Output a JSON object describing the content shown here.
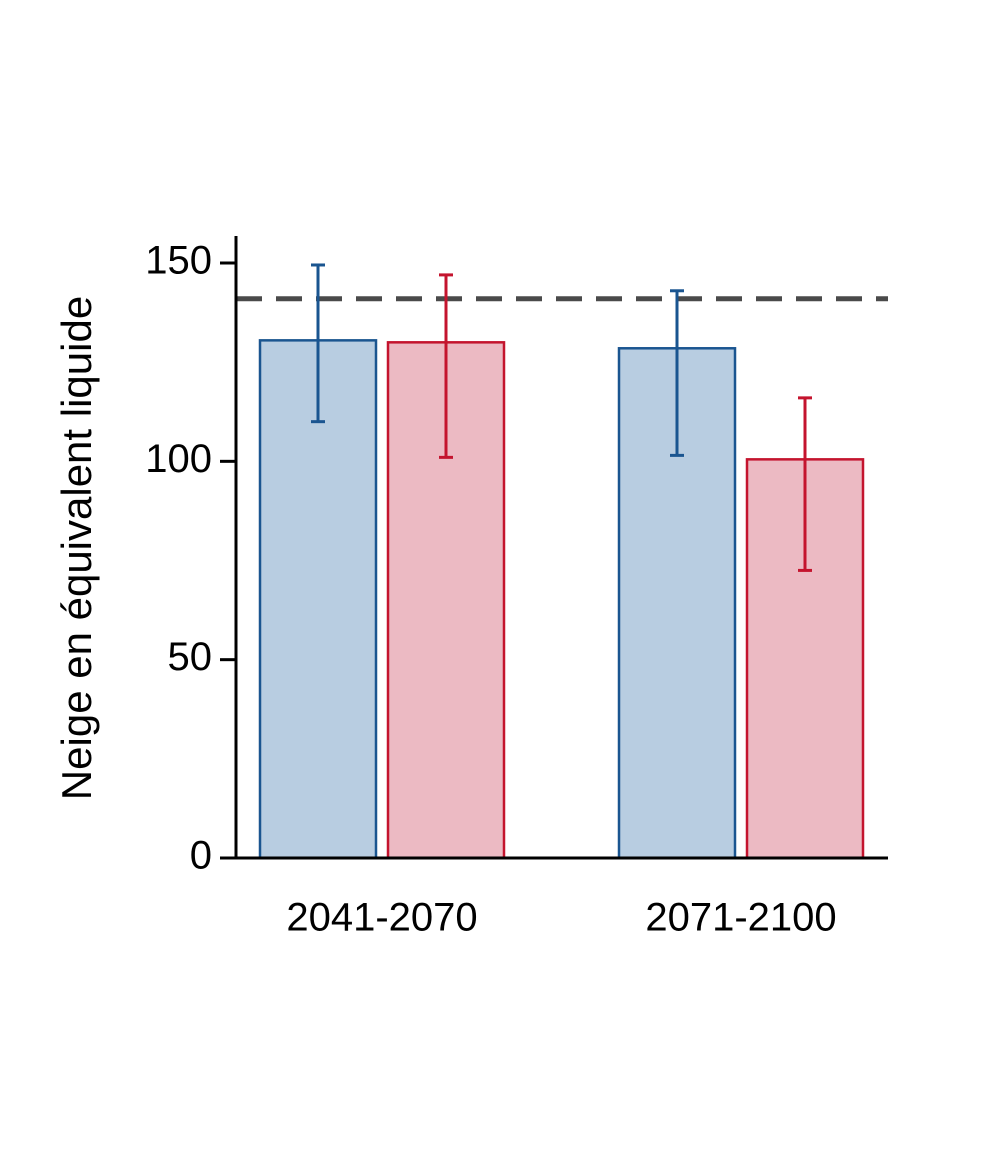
{
  "chart_data": {
    "type": "bar",
    "categories": [
      "2041-2070",
      "2071-2100"
    ],
    "series": [
      {
        "color": "#1a5590",
        "fill": "#b8cde1",
        "values": [
          130.5,
          128.5
        ],
        "error_low": [
          110,
          101.5
        ],
        "error_high": [
          149.5,
          143
        ]
      },
      {
        "color": "#c4142e",
        "fill": "#ecbac3",
        "values": [
          130,
          100.5
        ],
        "error_low": [
          101,
          72.5
        ],
        "error_high": [
          147,
          116
        ]
      }
    ],
    "reference_line": {
      "value": 141,
      "style": "dashed",
      "color": "#4a4a4a"
    },
    "title": "",
    "xlabel": "",
    "ylabel": "Neige en équivalent liquide",
    "ylim": [
      0,
      157
    ],
    "yticks": [
      0,
      50,
      100,
      150
    ],
    "grid": false,
    "legend": "none"
  }
}
